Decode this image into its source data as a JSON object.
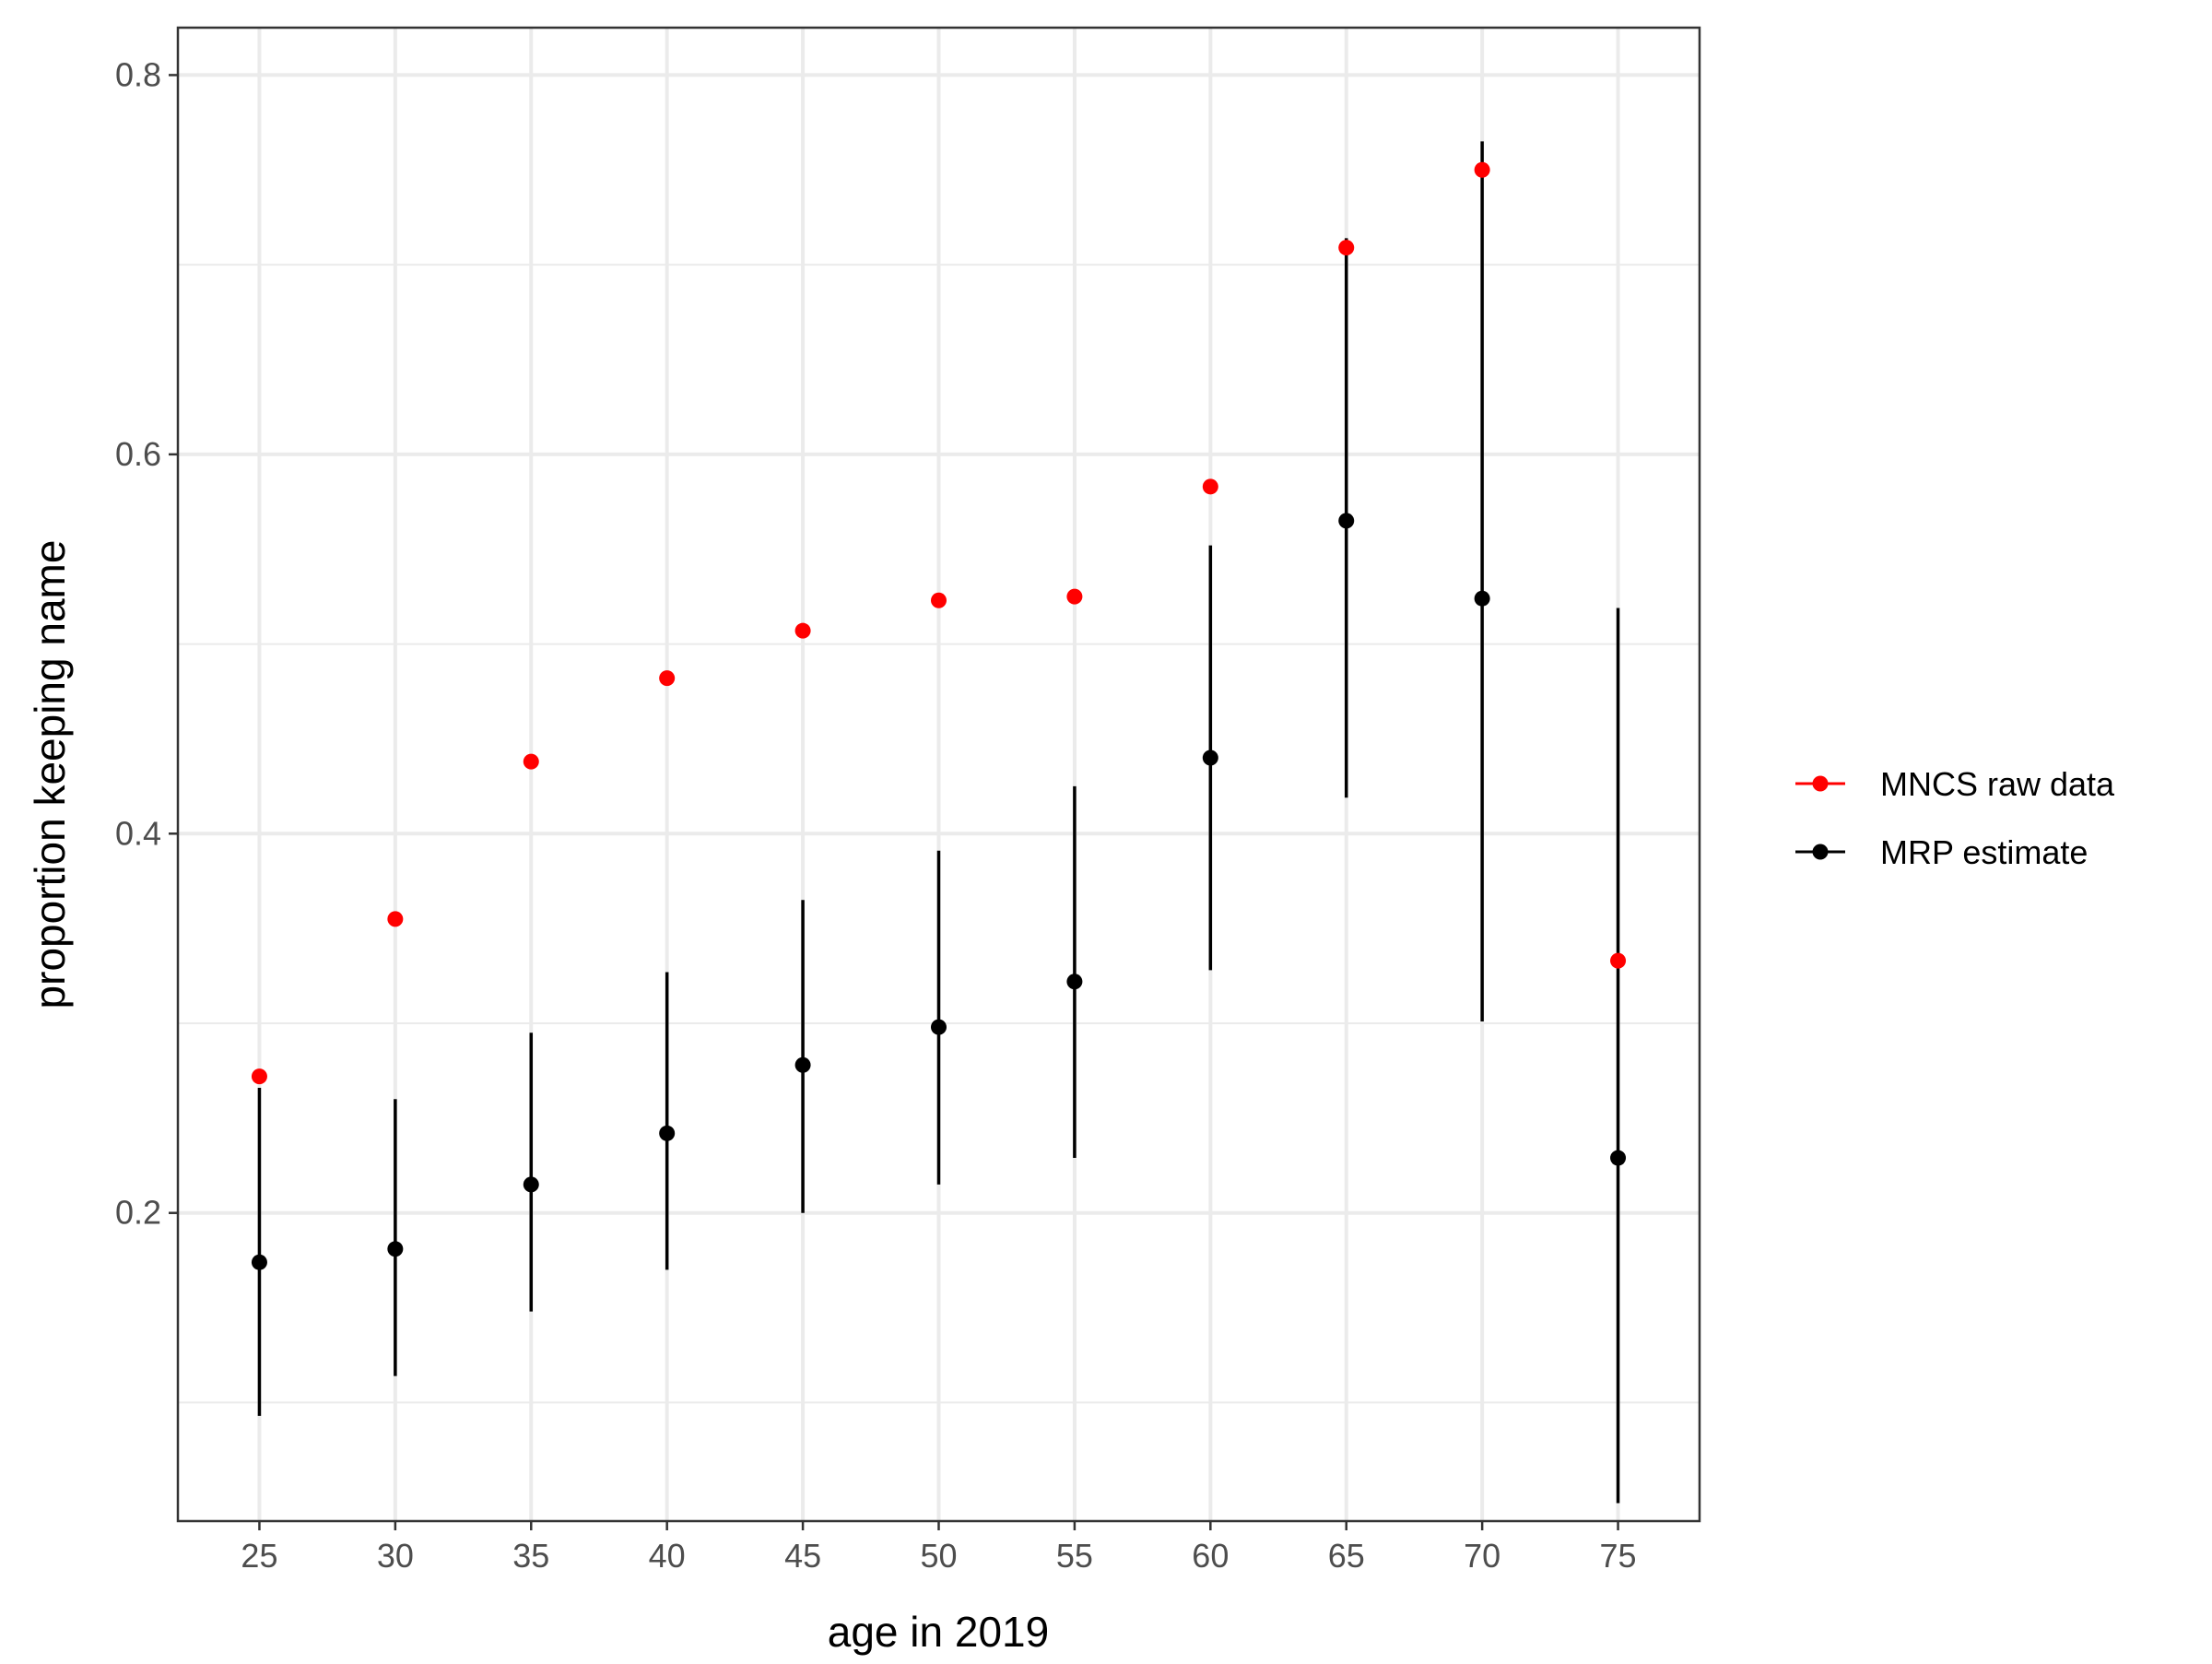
{
  "chart_data": {
    "type": "scatter",
    "title": "",
    "xlabel": "age in 2019",
    "ylabel": "proportion keeping name",
    "xlim": [
      22,
      78
    ],
    "ylim": [
      0.0375,
      0.825
    ],
    "x_ticks": [
      25,
      30,
      35,
      40,
      45,
      50,
      55,
      60,
      65,
      70,
      75
    ],
    "y_ticks": [
      0.2,
      0.4,
      0.6,
      0.8
    ],
    "y_ticks_minor": [
      0.1,
      0.3,
      0.5,
      0.7
    ],
    "grid": true,
    "legend_position": "right",
    "series": [
      {
        "name": "MNCS raw data",
        "color": "#ff0000",
        "marker": "point",
        "points": [
          {
            "x": 25,
            "y": 0.272
          },
          {
            "x": 30,
            "y": 0.355
          },
          {
            "x": 35,
            "y": 0.438
          },
          {
            "x": 40,
            "y": 0.482
          },
          {
            "x": 45,
            "y": 0.507
          },
          {
            "x": 50,
            "y": 0.523
          },
          {
            "x": 55,
            "y": 0.525
          },
          {
            "x": 60,
            "y": 0.583
          },
          {
            "x": 65,
            "y": 0.709
          },
          {
            "x": 70,
            "y": 0.75
          },
          {
            "x": 75,
            "y": 0.333
          }
        ]
      },
      {
        "name": "MRP estimate",
        "color": "#000000",
        "marker": "pointrange",
        "points": [
          {
            "x": 25,
            "y": 0.174,
            "lower": 0.093,
            "upper": 0.266
          },
          {
            "x": 30,
            "y": 0.181,
            "lower": 0.114,
            "upper": 0.26
          },
          {
            "x": 35,
            "y": 0.215,
            "lower": 0.148,
            "upper": 0.295
          },
          {
            "x": 40,
            "y": 0.242,
            "lower": 0.17,
            "upper": 0.327
          },
          {
            "x": 45,
            "y": 0.278,
            "lower": 0.2,
            "upper": 0.365
          },
          {
            "x": 50,
            "y": 0.298,
            "lower": 0.215,
            "upper": 0.391
          },
          {
            "x": 55,
            "y": 0.322,
            "lower": 0.229,
            "upper": 0.425
          },
          {
            "x": 60,
            "y": 0.44,
            "lower": 0.328,
            "upper": 0.552
          },
          {
            "x": 65,
            "y": 0.565,
            "lower": 0.419,
            "upper": 0.714
          },
          {
            "x": 70,
            "y": 0.524,
            "lower": 0.301,
            "upper": 0.765
          },
          {
            "x": 75,
            "y": 0.229,
            "lower": 0.047,
            "upper": 0.519
          }
        ]
      }
    ],
    "colors": {
      "panel_border": "#333333",
      "grid_major": "#ebebeb",
      "grid_minor": "#ebebeb",
      "tick_label": "#4d4d4d"
    }
  }
}
